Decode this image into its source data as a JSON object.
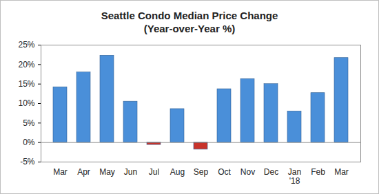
{
  "chart_data": {
    "type": "bar",
    "title": "Seattle Condo Median Price Change",
    "subtitle": "(Year-over-Year %)",
    "categories": [
      "Mar",
      "Apr",
      "May",
      "Jun",
      "Jul",
      "Aug",
      "Sep",
      "Oct",
      "Nov",
      "Dec",
      "Jan\n'18",
      "Feb",
      "Mar"
    ],
    "values": [
      14.2,
      18.0,
      22.3,
      10.5,
      -0.6,
      8.6,
      -1.8,
      13.7,
      16.3,
      15.0,
      8.0,
      12.7,
      21.7
    ],
    "colors": [
      "#4a8fd9",
      "#4a8fd9",
      "#4a8fd9",
      "#4a8fd9",
      "#c8332b",
      "#4a8fd9",
      "#c8332b",
      "#4a8fd9",
      "#4a8fd9",
      "#4a8fd9",
      "#4a8fd9",
      "#4a8fd9",
      "#4a8fd9"
    ],
    "ylim": [
      -5,
      25
    ],
    "yticks": [
      {
        "value": -5,
        "label": "-5%"
      },
      {
        "value": 0,
        "label": "0%"
      },
      {
        "value": 5,
        "label": "5%"
      },
      {
        "value": 10,
        "label": "10%"
      },
      {
        "value": 15,
        "label": "15%"
      },
      {
        "value": 20,
        "label": "20%"
      },
      {
        "value": 25,
        "label": "25%"
      }
    ],
    "grid": false
  }
}
